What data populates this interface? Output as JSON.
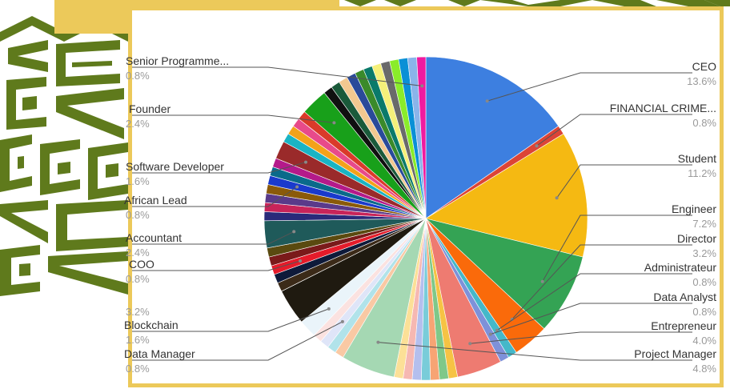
{
  "colors": {
    "frame": "#ecc95a",
    "pattern": "#5f7a1c"
  },
  "chart_data": {
    "type": "pie",
    "labels_right": [
      {
        "label": "CEO",
        "pct": "13.6%"
      },
      {
        "label": "FINANCIAL CRIME...",
        "pct": "0.8%"
      },
      {
        "label": "Student",
        "pct": "11.2%"
      },
      {
        "label": "Engineer",
        "pct": "7.2%"
      },
      {
        "label": "Director",
        "pct": "3.2%"
      },
      {
        "label": "Administrateur",
        "pct": "0.8%"
      },
      {
        "label": "Data Analyst",
        "pct": "0.8%"
      },
      {
        "label": "Entrepreneur",
        "pct": "4.0%"
      },
      {
        "label": "Project Manager",
        "pct": "4.8%"
      }
    ],
    "labels_left": [
      {
        "label": "Senior Programme...",
        "pct": "0.8%"
      },
      {
        "label": "Founder",
        "pct": "2.4%"
      },
      {
        "label": "Software Developer",
        "pct": "1.6%"
      },
      {
        "label": "African Lead",
        "pct": "0.8%"
      },
      {
        "label": "Accountant",
        "pct": "2.4%"
      },
      {
        "label": "COO",
        "pct": "0.8%"
      },
      {
        "label": "",
        "pct": "3.2%"
      },
      {
        "label": "Blockchain",
        "pct": "1.6%"
      },
      {
        "label": "Data Manager",
        "pct": "0.8%"
      }
    ],
    "slices": [
      {
        "label": "CEO",
        "value": 13.6,
        "color": "#3d7fe0"
      },
      {
        "label": "FINANCIAL CRIME...",
        "value": 0.8,
        "color": "#dc4436"
      },
      {
        "label": "Student",
        "value": 11.2,
        "color": "#f5b912"
      },
      {
        "label": "Engineer",
        "value": 7.2,
        "color": "#34a354"
      },
      {
        "label": "Director",
        "value": 3.2,
        "color": "#fa6a0a"
      },
      {
        "label": "Administrateur",
        "value": 0.8,
        "color": "#45b8c9"
      },
      {
        "label": "Data Analyst",
        "value": 0.8,
        "color": "#7e91d9"
      },
      {
        "label": "Entrepreneur",
        "value": 4.0,
        "color": "#ee7b71"
      },
      {
        "label": "",
        "value": 0.8,
        "color": "#f6c344"
      },
      {
        "label": "",
        "value": 0.8,
        "color": "#7fc889"
      },
      {
        "label": "",
        "value": 0.8,
        "color": "#f7a474"
      },
      {
        "label": "",
        "value": 0.8,
        "color": "#79ccd9"
      },
      {
        "label": "",
        "value": 0.8,
        "color": "#b4bfee"
      },
      {
        "label": "",
        "value": 0.8,
        "color": "#f6b8b2"
      },
      {
        "label": "",
        "value": 0.8,
        "color": "#fce097"
      },
      {
        "label": "Project Manager",
        "value": 4.8,
        "color": "#a5d8b3"
      },
      {
        "label": "",
        "value": 0.8,
        "color": "#f9c9a4"
      },
      {
        "label": "",
        "value": 0.8,
        "color": "#b1e3ea"
      },
      {
        "label": "Data Manager",
        "value": 0.8,
        "color": "#dfe5f8"
      },
      {
        "label": "",
        "value": 0.8,
        "color": "#fbe2e0"
      },
      {
        "label": "Blockchain",
        "value": 1.6,
        "color": "#eaf4fa"
      },
      {
        "label": "",
        "value": 3.2,
        "color": "#1f1a10"
      },
      {
        "label": "",
        "value": 0.8,
        "color": "#3b2a18"
      },
      {
        "label": "",
        "value": 0.8,
        "color": "#0e1a3a"
      },
      {
        "label": "COO",
        "value": 0.8,
        "color": "#e41b2a"
      },
      {
        "label": "",
        "value": 0.8,
        "color": "#7a1a1a"
      },
      {
        "label": "",
        "value": 0.8,
        "color": "#5a4a10"
      },
      {
        "label": "Accountant",
        "value": 2.4,
        "color": "#1f5a5a"
      },
      {
        "label": "",
        "value": 0.8,
        "color": "#2a2a7a"
      },
      {
        "label": "",
        "value": 0.8,
        "color": "#c8245a"
      },
      {
        "label": "",
        "value": 0.8,
        "color": "#5a3a8a"
      },
      {
        "label": "",
        "value": 0.8,
        "color": "#8a5a0a"
      },
      {
        "label": "African Lead",
        "value": 0.8,
        "color": "#1a3acc"
      },
      {
        "label": "",
        "value": 0.8,
        "color": "#0a6a8a"
      },
      {
        "label": "",
        "value": 0.8,
        "color": "#b41a8a"
      },
      {
        "label": "Software Developer",
        "value": 1.6,
        "color": "#9a2a2a"
      },
      {
        "label": "",
        "value": 0.8,
        "color": "#1ab4c4"
      },
      {
        "label": "",
        "value": 0.8,
        "color": "#f3a21a"
      },
      {
        "label": "",
        "value": 0.8,
        "color": "#e84a8a"
      },
      {
        "label": "",
        "value": 0.8,
        "color": "#da3a2a"
      },
      {
        "label": "Founder",
        "value": 2.4,
        "color": "#18a01a"
      },
      {
        "label": "",
        "value": 0.8,
        "color": "#101010"
      },
      {
        "label": "",
        "value": 0.8,
        "color": "#1a5a3a"
      },
      {
        "label": "",
        "value": 0.8,
        "color": "#f2c890"
      },
      {
        "label": "",
        "value": 0.8,
        "color": "#2a4a9a"
      },
      {
        "label": "",
        "value": 0.8,
        "color": "#3a8a2a"
      },
      {
        "label": "",
        "value": 0.8,
        "color": "#0a7a6a"
      },
      {
        "label": "",
        "value": 0.8,
        "color": "#f5f07a"
      },
      {
        "label": "",
        "value": 0.8,
        "color": "#6a6a6a"
      },
      {
        "label": "",
        "value": 0.8,
        "color": "#8aec2a"
      },
      {
        "label": "",
        "value": 0.8,
        "color": "#0a90d6"
      },
      {
        "label": "",
        "value": 0.8,
        "color": "#8ab4ea"
      },
      {
        "label": "Senior Programme...",
        "value": 0.8,
        "color": "#f01aa0"
      }
    ]
  }
}
